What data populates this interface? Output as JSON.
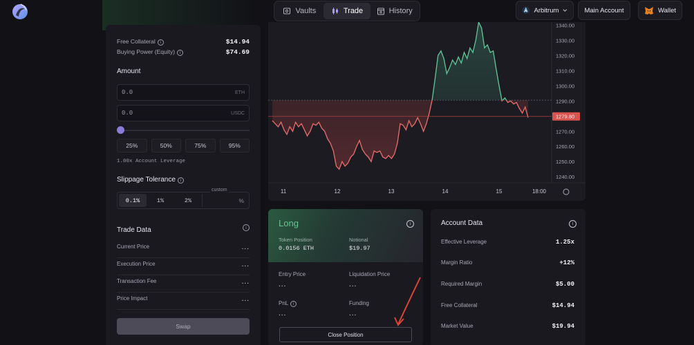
{
  "nav": {
    "tabs": [
      {
        "label": "Vaults",
        "icon": "vault-icon"
      },
      {
        "label": "Trade",
        "icon": "candlestick-icon",
        "active": true
      },
      {
        "label": "History",
        "icon": "calendar-icon"
      }
    ]
  },
  "header": {
    "network": "Arbitrum",
    "account": "Main Account",
    "wallet": "Wallet"
  },
  "left": {
    "free_collateral_label": "Free Collateral",
    "free_collateral_value": "$14.94",
    "buying_power_label": "Buying Power (Equity)",
    "buying_power_value": "$74.69",
    "amount_title": "Amount",
    "eth_input": {
      "value": "0.0",
      "unit": "ETH"
    },
    "usdc_input": {
      "value": "0.0",
      "unit": "USDC"
    },
    "slider_level": 0,
    "pct_buttons": [
      "25%",
      "50%",
      "75%",
      "95%"
    ],
    "leverage_text": "1.00x Account Leverage",
    "slippage_title": "Slippage Tolerance",
    "slippage_options": [
      "0.1%",
      "1%",
      "2%"
    ],
    "slippage_selected": "0.1%",
    "custom_label": "custom",
    "custom_unit": "%",
    "trade_data_title": "Trade Data",
    "trade_rows": [
      {
        "label": "Current Price",
        "value": "..."
      },
      {
        "label": "Execution Price",
        "value": "..."
      },
      {
        "label": "Transaction Fee",
        "value": "..."
      },
      {
        "label": "Price Impact",
        "value": "..."
      }
    ],
    "swap_label": "Swap"
  },
  "chart_data": {
    "type": "line",
    "x_ticks": [
      "11",
      "12",
      "13",
      "14",
      "15",
      "18:00"
    ],
    "y_ticks": [
      "1340.00",
      "1330.00",
      "1320.00",
      "1310.00",
      "1300.00",
      "1290.00",
      "1280.00",
      "1270.00",
      "1260.00",
      "1250.00",
      "1240.00"
    ],
    "ylim": [
      1236,
      1342
    ],
    "baseline": 1290.5,
    "current_price": "1279.80",
    "current_price_value": 1279.8,
    "series": [
      {
        "values": [
          1277,
          1275,
          1273,
          1276,
          1271,
          1268,
          1273,
          1270,
          1276,
          1273,
          1275,
          1271,
          1267,
          1270,
          1275,
          1274,
          1276,
          1272,
          1270,
          1265,
          1262,
          1257,
          1247,
          1245,
          1250,
          1247,
          1249,
          1253,
          1255,
          1260,
          1264,
          1258,
          1255,
          1253,
          1250,
          1257,
          1256,
          1257,
          1253,
          1252,
          1254,
          1252,
          1255,
          1262,
          1275,
          1274,
          1271,
          1277,
          1273,
          1275,
          1279,
          1275,
          1270,
          1275,
          1282,
          1291,
          1305,
          1320,
          1323,
          1318,
          1308,
          1312,
          1317,
          1314,
          1319,
          1315,
          1322,
          1318,
          1325,
          1322,
          1330,
          1342,
          1338,
          1325,
          1327,
          1322,
          1323,
          1311,
          1300,
          1290,
          1292,
          1289,
          1290,
          1288,
          1289,
          1285,
          1282,
          1286,
          1279
        ]
      }
    ]
  },
  "position": {
    "title": "Long",
    "token_position_label": "Token Position",
    "token_position_value": "0.0156 ETH",
    "notional_label": "Notional",
    "notional_value": "$19.97",
    "entry_price_label": "Entry Price",
    "entry_price_value": "...",
    "liquidation_price_label": "Liquidation Price",
    "liquidation_price_value": "...",
    "pnl_label": "PnL",
    "pnl_value": "...",
    "funding_label": "Funding",
    "funding_value": "...",
    "close_label": "Close Position"
  },
  "account_data": {
    "title": "Account Data",
    "rows": [
      {
        "label": "Effective Leverage",
        "value": "1.25x"
      },
      {
        "label": "Margin Ratio",
        "value": "+12%"
      },
      {
        "label": "Required Margin",
        "value": "$5.00"
      },
      {
        "label": "Free Collateral",
        "value": "$14.94"
      },
      {
        "label": "Market Value",
        "value": "$19.94"
      }
    ]
  },
  "colors": {
    "up": "#5fbf94",
    "down": "#e06a6a",
    "accent": "#8d7bd9",
    "price_tag": "#d9534f"
  }
}
